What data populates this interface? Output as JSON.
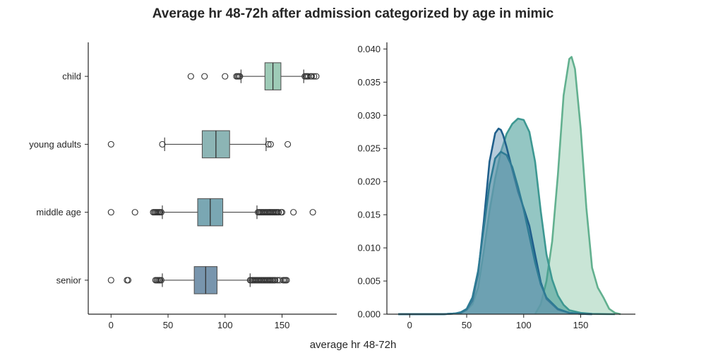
{
  "chart_data": [
    {
      "type": "box",
      "orientation": "horizontal",
      "title": "Average hr 48-72h after admission categorized by age in mimic",
      "xlabel": "average hr 48-72h",
      "xlim": [
        -20,
        198
      ],
      "xticks": [
        0,
        50,
        100,
        150
      ],
      "categories": [
        "child",
        "young adults",
        "middle age",
        "senior"
      ],
      "grid": false,
      "boxes": [
        {
          "name": "child",
          "color": "#9ecbb7",
          "whisker_low": 114,
          "q1": 135,
          "median": 142,
          "q3": 149,
          "whisker_high": 169,
          "outliers": [
            70,
            82,
            100,
            110,
            111,
            112,
            113,
            170,
            171,
            172,
            173,
            175,
            176,
            178,
            180
          ]
        },
        {
          "name": "young adults",
          "color": "#8cb5b5",
          "whisker_low": 47,
          "q1": 80,
          "median": 92,
          "q3": 104,
          "whisker_high": 136,
          "outliers": [
            0,
            45,
            138,
            140,
            155
          ]
        },
        {
          "name": "middle age",
          "color": "#7aa7b3",
          "whisker_low": 45,
          "q1": 76,
          "median": 87,
          "q3": 98,
          "whisker_high": 128,
          "outliers": [
            0,
            21,
            37,
            38,
            39,
            40,
            41,
            42,
            43,
            44,
            129,
            130,
            131,
            132,
            133,
            134,
            135,
            136,
            137,
            138,
            139,
            140,
            141,
            142,
            143,
            144,
            145,
            146,
            147,
            149,
            150,
            160,
            177
          ]
        },
        {
          "name": "senior",
          "color": "#7895ad",
          "whisker_low": 45,
          "q1": 73,
          "median": 83,
          "q3": 93,
          "whisker_high": 122,
          "outliers": [
            0,
            14,
            15,
            39,
            40,
            41,
            42,
            43,
            44,
            122,
            123,
            124,
            125,
            126,
            127,
            128,
            129,
            130,
            131,
            132,
            133,
            134,
            135,
            136,
            137,
            138,
            139,
            140,
            141,
            142,
            143,
            144,
            146,
            148,
            151,
            152,
            153,
            154
          ]
        }
      ]
    },
    {
      "type": "area",
      "subtype": "kde",
      "xlim": [
        -20,
        198
      ],
      "ylim": [
        0,
        0.041
      ],
      "xticks": [
        0,
        50,
        100,
        150
      ],
      "yticks": [
        0.0,
        0.005,
        0.01,
        0.015,
        0.02,
        0.025,
        0.03,
        0.035,
        0.04
      ],
      "ytick_labels": [
        "0.000",
        "0.005",
        "0.010",
        "0.015",
        "0.020",
        "0.025",
        "0.030",
        "0.035",
        "0.040"
      ],
      "grid": false,
      "series": [
        {
          "color": "#62b08f",
          "fill": "#9ccfb5",
          "x": [
            110,
            115,
            120,
            125,
            130,
            135,
            140,
            142,
            145,
            150,
            155,
            160,
            165,
            170,
            175,
            180,
            185
          ],
          "y": [
            0.0,
            0.0015,
            0.005,
            0.011,
            0.021,
            0.033,
            0.0385,
            0.0388,
            0.037,
            0.028,
            0.016,
            0.007,
            0.004,
            0.0025,
            0.0008,
            0.0002,
            0.0
          ]
        },
        {
          "color": "#3d9892",
          "fill": "#3d9892",
          "x": [
            -10,
            30,
            40,
            45,
            50,
            55,
            60,
            65,
            70,
            75,
            80,
            85,
            90,
            95,
            100,
            105,
            110,
            115,
            120,
            125,
            130,
            135,
            140,
            150,
            160,
            170,
            180
          ],
          "y": [
            0.0,
            0.0,
            0.0001,
            0.0002,
            0.0006,
            0.0015,
            0.004,
            0.0095,
            0.0155,
            0.0205,
            0.0245,
            0.0272,
            0.0287,
            0.0295,
            0.0293,
            0.0275,
            0.023,
            0.0155,
            0.009,
            0.0052,
            0.0028,
            0.0014,
            0.0006,
            0.0002,
            5e-05,
            2e-05,
            0.0
          ]
        },
        {
          "color": "#1f5f8b",
          "fill": "#7aa3be",
          "x": [
            -10,
            30,
            40,
            45,
            50,
            55,
            60,
            65,
            70,
            75,
            78,
            80,
            82,
            85,
            90,
            95,
            100,
            105,
            110,
            115,
            120,
            130,
            140,
            150,
            160
          ],
          "y": [
            0.0,
            0.0,
            0.0001,
            0.0002,
            0.0007,
            0.002,
            0.006,
            0.014,
            0.023,
            0.0273,
            0.028,
            0.0278,
            0.027,
            0.0252,
            0.0218,
            0.0185,
            0.016,
            0.0133,
            0.009,
            0.0048,
            0.0023,
            0.0007,
            0.0002,
            5e-05,
            0.0
          ]
        },
        {
          "color": "#2e7b94",
          "fill": "#5a94a6",
          "x": [
            -10,
            30,
            40,
            45,
            50,
            55,
            60,
            65,
            70,
            75,
            80,
            85,
            90,
            95,
            100,
            105,
            110,
            115,
            120,
            130,
            140,
            150,
            160
          ],
          "y": [
            0.0,
            0.0,
            0.0001,
            0.0003,
            0.0008,
            0.0025,
            0.0065,
            0.013,
            0.0195,
            0.0235,
            0.0245,
            0.024,
            0.0222,
            0.0192,
            0.0158,
            0.0118,
            0.0078,
            0.0045,
            0.0025,
            0.0008,
            0.0002,
            5e-05,
            0.0
          ]
        }
      ]
    }
  ]
}
